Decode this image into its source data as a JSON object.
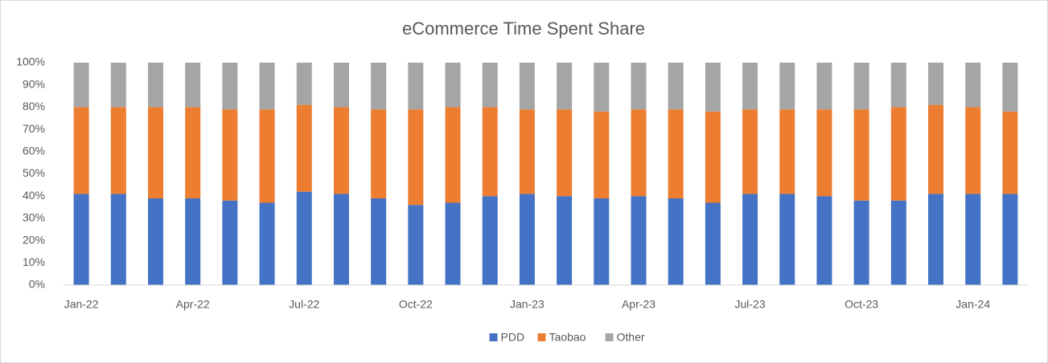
{
  "chart_data": {
    "type": "stacked_bar",
    "title": "eCommerce Time Spent Share",
    "categories": [
      "Jan-22",
      null,
      null,
      "Apr-22",
      null,
      null,
      "Jul-22",
      null,
      null,
      "Oct-22",
      null,
      null,
      "Jan-23",
      null,
      null,
      "Apr-23",
      null,
      null,
      "Jul-23",
      null,
      null,
      "Oct-23",
      null,
      null,
      "Jan-24",
      null
    ],
    "series": [
      {
        "name": "PDD",
        "color": "#4472c4",
        "values": [
          41,
          41,
          39,
          39,
          38,
          37,
          42,
          41,
          39,
          36,
          37,
          40,
          41,
          40,
          39,
          40,
          39,
          37,
          41,
          41,
          40,
          38,
          38,
          41,
          41,
          41
        ]
      },
      {
        "name": "Taobao",
        "color": "#ed7d31",
        "values": [
          39,
          39,
          41,
          41,
          41,
          42,
          39,
          39,
          40,
          43,
          43,
          40,
          38,
          39,
          39,
          39,
          40,
          41,
          38,
          38,
          39,
          41,
          42,
          40,
          39,
          37
        ]
      },
      {
        "name": "Other",
        "color": "#a5a5a5",
        "values": [
          20,
          20,
          20,
          20,
          21,
          21,
          19,
          20,
          21,
          21,
          20,
          20,
          21,
          21,
          22,
          21,
          21,
          22,
          21,
          21,
          21,
          21,
          20,
          19,
          20,
          22
        ]
      }
    ],
    "ylim": [
      0,
      100
    ],
    "yticks": [
      {
        "value": 0,
        "label": "0%"
      },
      {
        "value": 10,
        "label": "10%"
      },
      {
        "value": 20,
        "label": "20%"
      },
      {
        "value": 30,
        "label": "30%"
      },
      {
        "value": 40,
        "label": "40%"
      },
      {
        "value": 50,
        "label": "50%"
      },
      {
        "value": 60,
        "label": "60%"
      },
      {
        "value": 70,
        "label": "70%"
      },
      {
        "value": 80,
        "label": "80%"
      },
      {
        "value": 90,
        "label": "90%"
      },
      {
        "value": 100,
        "label": "100%"
      }
    ],
    "grid": false,
    "legend": "bottom"
  }
}
